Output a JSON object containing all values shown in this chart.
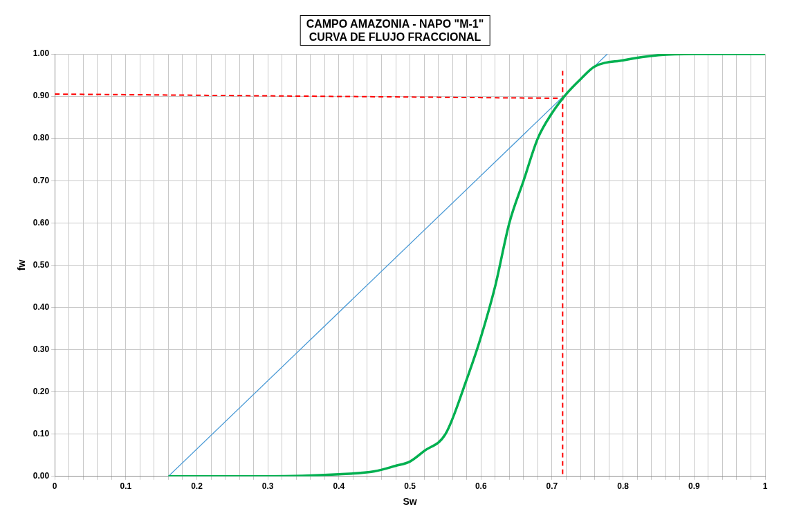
{
  "chart_data": {
    "type": "line",
    "title": "CAMPO AMAZONIA - NAPO \"M-1\"\nCURVA DE FLUJO FRACCIONAL",
    "xlabel": "Sw",
    "ylabel": "fw",
    "series": [
      {
        "color": "#00b050",
        "x": [
          0.16,
          0.3,
          0.4,
          0.45,
          0.48,
          0.5,
          0.52,
          0.55,
          0.58,
          0.6,
          0.62,
          0.64,
          0.66,
          0.68,
          0.7,
          0.72,
          0.74,
          0.76,
          0.8,
          0.85,
          0.9,
          1.0
        ],
        "values": [
          0,
          0,
          0.005,
          0.012,
          0.025,
          0.035,
          0.06,
          0.1,
          0.23,
          0.33,
          0.45,
          0.6,
          0.7,
          0.8,
          0.86,
          0.905,
          0.94,
          0.97,
          0.985,
          0.997,
          1.0,
          1.0
        ]
      },
      {
        "color": "#4a9ad6",
        "x": [
          0.16,
          0.778
        ],
        "values": [
          0,
          1.0
        ]
      },
      {
        "color": "#ff0000",
        "line_style": "dashed",
        "x": [
          0,
          0.715
        ],
        "values": [
          0.905,
          0.895
        ]
      },
      {
        "color": "#ff0000",
        "line_style": "dashed",
        "x": [
          0.715,
          0.715
        ],
        "values": [
          0.96,
          0
        ]
      }
    ],
    "xlim": [
      0,
      1
    ],
    "ylim": [
      0,
      1
    ],
    "xticks": [
      0,
      {
        "value": 0.02,
        "label": null
      },
      {
        "value": 0.04,
        "label": null
      },
      {
        "value": 0.06,
        "label": null
      },
      {
        "value": 0.08,
        "label": null
      },
      0.1,
      {
        "value": 0.12,
        "label": null
      },
      {
        "value": 0.14,
        "label": null
      },
      {
        "value": 0.16,
        "label": null
      },
      {
        "value": 0.18,
        "label": null
      },
      0.2,
      {
        "value": 0.22,
        "label": null
      },
      {
        "value": 0.24,
        "label": null
      },
      {
        "value": 0.26,
        "label": null
      },
      {
        "value": 0.28,
        "label": null
      },
      0.3,
      {
        "value": 0.32,
        "label": null
      },
      {
        "value": 0.34,
        "label": null
      },
      {
        "value": 0.36,
        "label": null
      },
      {
        "value": 0.38,
        "label": null
      },
      0.4,
      {
        "value": 0.42,
        "label": null
      },
      {
        "value": 0.44,
        "label": null
      },
      {
        "value": 0.46,
        "label": null
      },
      {
        "value": 0.48,
        "label": null
      },
      0.5,
      {
        "value": 0.52,
        "label": null
      },
      {
        "value": 0.54,
        "label": null
      },
      {
        "value": 0.56,
        "label": null
      },
      {
        "value": 0.58,
        "label": null
      },
      0.6,
      {
        "value": 0.62,
        "label": null
      },
      {
        "value": 0.64,
        "label": null
      },
      {
        "value": 0.66,
        "label": null
      },
      {
        "value": 0.68,
        "label": null
      },
      0.7,
      {
        "value": 0.72,
        "label": null
      },
      {
        "value": 0.74,
        "label": null
      },
      {
        "value": 0.76,
        "label": null
      },
      {
        "value": 0.78,
        "label": null
      },
      0.8,
      {
        "value": 0.82,
        "label": null
      },
      {
        "value": 0.84,
        "label": null
      },
      {
        "value": 0.86,
        "label": null
      },
      {
        "value": 0.88,
        "label": null
      },
      0.9,
      {
        "value": 0.92,
        "label": null
      },
      {
        "value": 0.94,
        "label": null
      },
      {
        "value": 0.96,
        "label": null
      },
      {
        "value": 0.98,
        "label": null
      },
      1
    ],
    "yticks": [
      {
        "value": 0,
        "label": "0.00"
      },
      {
        "value": 0.1,
        "label": "0.10"
      },
      {
        "value": 0.2,
        "label": "0.20"
      },
      {
        "value": 0.3,
        "label": "0.30"
      },
      {
        "value": 0.4,
        "label": "0.40"
      },
      {
        "value": 0.5,
        "label": "0.50"
      },
      {
        "value": 0.6,
        "label": "0.60"
      },
      {
        "value": 0.7,
        "label": "0.70"
      },
      {
        "value": 0.8,
        "label": "0.80"
      },
      {
        "value": 0.9,
        "label": "0.90"
      },
      {
        "value": 1,
        "label": "1.00"
      }
    ],
    "grid": true,
    "legend": false,
    "marker": "none",
    "line_style": "solid"
  }
}
